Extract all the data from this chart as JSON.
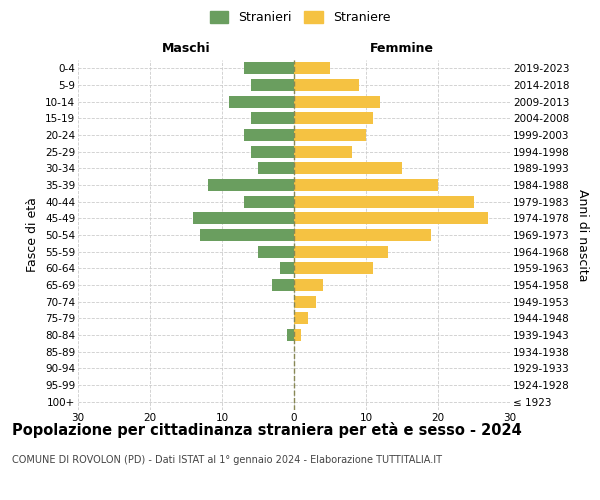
{
  "age_groups": [
    "100+",
    "95-99",
    "90-94",
    "85-89",
    "80-84",
    "75-79",
    "70-74",
    "65-69",
    "60-64",
    "55-59",
    "50-54",
    "45-49",
    "40-44",
    "35-39",
    "30-34",
    "25-29",
    "20-24",
    "15-19",
    "10-14",
    "5-9",
    "0-4"
  ],
  "birth_years": [
    "≤ 1923",
    "1924-1928",
    "1929-1933",
    "1934-1938",
    "1939-1943",
    "1944-1948",
    "1949-1953",
    "1954-1958",
    "1959-1963",
    "1964-1968",
    "1969-1973",
    "1974-1978",
    "1979-1983",
    "1984-1988",
    "1989-1993",
    "1994-1998",
    "1999-2003",
    "2004-2008",
    "2009-2013",
    "2014-2018",
    "2019-2023"
  ],
  "males": [
    0,
    0,
    0,
    0,
    1,
    0,
    0,
    3,
    2,
    5,
    13,
    14,
    7,
    12,
    5,
    6,
    7,
    6,
    9,
    6,
    7
  ],
  "females": [
    0,
    0,
    0,
    0,
    1,
    2,
    3,
    4,
    11,
    13,
    19,
    27,
    25,
    20,
    15,
    8,
    10,
    11,
    12,
    9,
    5
  ],
  "male_color": "#6a9e5f",
  "female_color": "#f5c242",
  "background_color": "#ffffff",
  "grid_color": "#cccccc",
  "center_line_color": "#888855",
  "title": "Popolazione per cittadinanza straniera per età e sesso - 2024",
  "subtitle": "COMUNE DI ROVOLON (PD) - Dati ISTAT al 1° gennaio 2024 - Elaborazione TUTTITALIA.IT",
  "xlabel_left": "Maschi",
  "xlabel_right": "Femmine",
  "ylabel_left": "Fasce di età",
  "ylabel_right": "Anni di nascita",
  "legend_male": "Stranieri",
  "legend_female": "Straniere",
  "xlim": 30,
  "tick_fontsize": 7.5,
  "label_fontsize": 9,
  "title_fontsize": 10.5
}
